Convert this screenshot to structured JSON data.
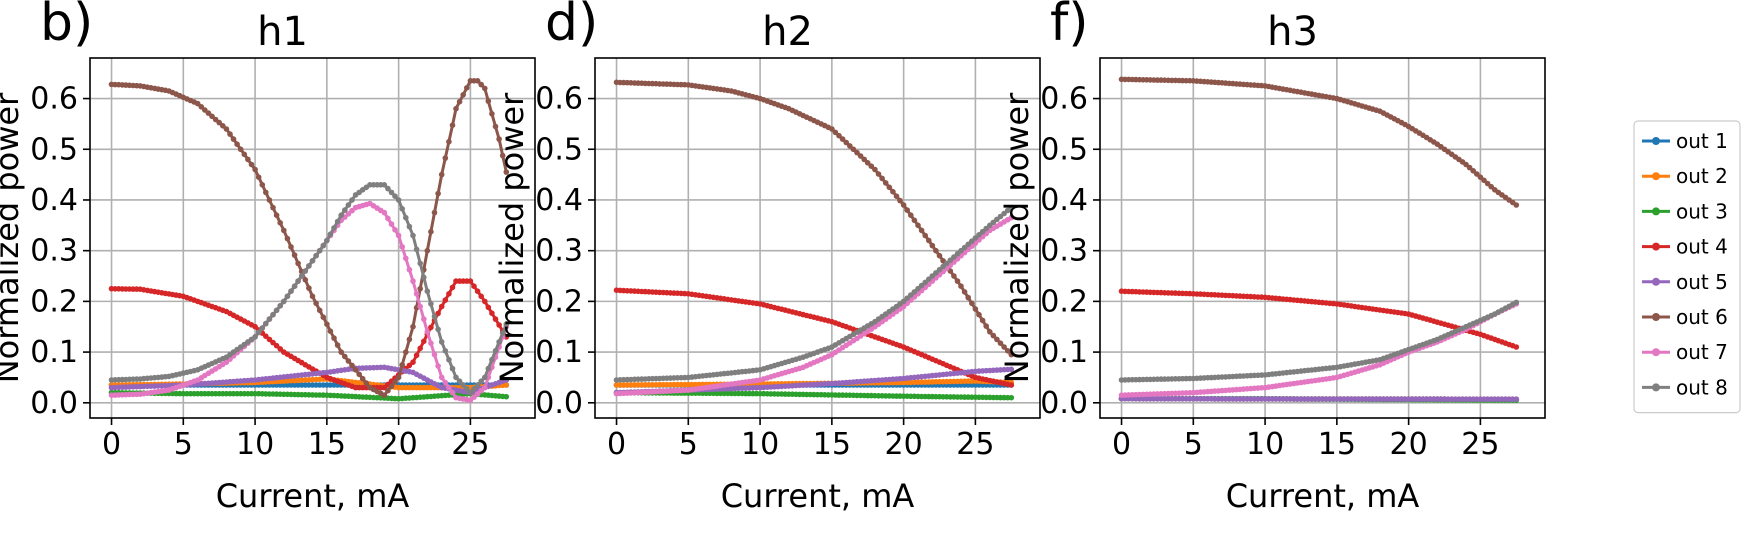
{
  "chart_data": [
    {
      "type": "line",
      "panel_label": "b)",
      "title": "h1",
      "xlabel": "Current, mA",
      "ylabel": "Normalized power",
      "xlim": [
        -1.5,
        29.5
      ],
      "ylim": [
        -0.03,
        0.68
      ],
      "xticks": [
        0,
        5,
        10,
        15,
        20,
        25
      ],
      "yticks": [
        0.0,
        0.1,
        0.2,
        0.3,
        0.4,
        0.5,
        0.6
      ],
      "grid": true,
      "legend": false,
      "series": [
        {
          "name": "out 1",
          "color": "#1f77b4",
          "x": [
            0,
            27.5
          ],
          "y": [
            0.035,
            0.035
          ]
        },
        {
          "name": "out 2",
          "color": "#ff7f0e",
          "x": [
            0,
            5,
            10,
            15,
            20,
            25,
            27.5
          ],
          "y": [
            0.035,
            0.037,
            0.04,
            0.047,
            0.03,
            0.03,
            0.035
          ]
        },
        {
          "name": "out 3",
          "color": "#2ca02c",
          "x": [
            0,
            5,
            10,
            15,
            20,
            25,
            27.5
          ],
          "y": [
            0.02,
            0.018,
            0.018,
            0.015,
            0.008,
            0.018,
            0.012
          ]
        },
        {
          "name": "out 4",
          "color": "#d62728",
          "x": [
            0,
            2,
            5,
            8,
            10,
            12,
            15,
            17,
            19,
            21,
            23,
            24,
            25,
            26,
            27.5
          ],
          "y": [
            0.225,
            0.224,
            0.21,
            0.18,
            0.15,
            0.1,
            0.05,
            0.03,
            0.03,
            0.08,
            0.19,
            0.24,
            0.24,
            0.2,
            0.13
          ]
        },
        {
          "name": "out 5",
          "color": "#9467bd",
          "x": [
            0,
            5,
            10,
            15,
            17,
            19,
            21,
            23,
            25,
            27.5
          ],
          "y": [
            0.03,
            0.035,
            0.045,
            0.06,
            0.068,
            0.07,
            0.06,
            0.03,
            0.02,
            0.045
          ]
        },
        {
          "name": "out 6",
          "color": "#8c564b",
          "x": [
            0,
            2,
            4,
            6,
            8,
            10,
            12,
            14,
            16,
            18,
            19,
            20,
            21,
            22,
            23,
            24,
            25,
            25.5,
            26,
            27,
            27.5
          ],
          "y": [
            0.628,
            0.625,
            0.615,
            0.59,
            0.54,
            0.46,
            0.34,
            0.21,
            0.1,
            0.03,
            0.015,
            0.05,
            0.15,
            0.3,
            0.45,
            0.58,
            0.635,
            0.635,
            0.62,
            0.52,
            0.455
          ]
        },
        {
          "name": "out 7",
          "color": "#e377c2",
          "x": [
            0,
            2,
            4,
            6,
            8,
            10,
            12,
            14,
            15,
            16,
            17,
            18,
            19,
            20,
            21,
            22,
            23,
            24,
            25,
            26,
            27.5
          ],
          "y": [
            0.015,
            0.017,
            0.025,
            0.045,
            0.08,
            0.13,
            0.2,
            0.28,
            0.32,
            0.36,
            0.385,
            0.393,
            0.375,
            0.33,
            0.24,
            0.14,
            0.05,
            0.01,
            0.005,
            0.03,
            0.15
          ]
        },
        {
          "name": "out 8",
          "color": "#7f7f7f",
          "x": [
            0,
            2,
            4,
            6,
            8,
            10,
            12,
            14,
            15,
            16,
            17,
            18,
            19,
            20,
            21,
            22,
            23,
            24,
            25,
            26,
            27.5
          ],
          "y": [
            0.045,
            0.047,
            0.052,
            0.065,
            0.09,
            0.13,
            0.2,
            0.28,
            0.32,
            0.37,
            0.41,
            0.43,
            0.43,
            0.4,
            0.33,
            0.22,
            0.12,
            0.05,
            0.02,
            0.05,
            0.155
          ]
        }
      ]
    },
    {
      "type": "line",
      "panel_label": "d)",
      "title": "h2",
      "xlabel": "Current, mA",
      "ylabel": "Normalized power",
      "xlim": [
        -1.5,
        29.5
      ],
      "ylim": [
        -0.03,
        0.68
      ],
      "xticks": [
        0,
        5,
        10,
        15,
        20,
        25
      ],
      "yticks": [
        0.0,
        0.1,
        0.2,
        0.3,
        0.4,
        0.5,
        0.6
      ],
      "grid": true,
      "legend": false,
      "series": [
        {
          "name": "out 1",
          "color": "#1f77b4",
          "x": [
            0,
            27.5
          ],
          "y": [
            0.035,
            0.035
          ]
        },
        {
          "name": "out 2",
          "color": "#ff7f0e",
          "x": [
            0,
            10,
            20,
            25,
            27.5
          ],
          "y": [
            0.035,
            0.037,
            0.04,
            0.043,
            0.04
          ]
        },
        {
          "name": "out 3",
          "color": "#2ca02c",
          "x": [
            0,
            10,
            20,
            27.5
          ],
          "y": [
            0.02,
            0.018,
            0.013,
            0.01
          ]
        },
        {
          "name": "out 4",
          "color": "#d62728",
          "x": [
            0,
            5,
            10,
            15,
            20,
            25,
            27.5
          ],
          "y": [
            0.222,
            0.215,
            0.195,
            0.16,
            0.11,
            0.05,
            0.035
          ]
        },
        {
          "name": "out 5",
          "color": "#9467bd",
          "x": [
            0,
            5,
            10,
            15,
            20,
            25,
            27.5
          ],
          "y": [
            0.02,
            0.025,
            0.03,
            0.038,
            0.048,
            0.062,
            0.066
          ]
        },
        {
          "name": "out 6",
          "color": "#8c564b",
          "x": [
            0,
            5,
            8,
            10,
            12,
            15,
            18,
            20,
            22,
            24,
            26,
            27.5
          ],
          "y": [
            0.632,
            0.627,
            0.615,
            0.6,
            0.58,
            0.54,
            0.46,
            0.39,
            0.31,
            0.23,
            0.14,
            0.095
          ]
        },
        {
          "name": "out 7",
          "color": "#e377c2",
          "x": [
            0,
            5,
            10,
            13,
            15,
            18,
            20,
            22,
            24,
            26,
            27.5
          ],
          "y": [
            0.018,
            0.025,
            0.045,
            0.07,
            0.095,
            0.15,
            0.19,
            0.24,
            0.29,
            0.34,
            0.365
          ]
        },
        {
          "name": "out 8",
          "color": "#7f7f7f",
          "x": [
            0,
            5,
            10,
            13,
            15,
            18,
            20,
            22,
            24,
            26,
            27.5
          ],
          "y": [
            0.045,
            0.05,
            0.065,
            0.09,
            0.11,
            0.16,
            0.2,
            0.25,
            0.3,
            0.35,
            0.385
          ]
        }
      ]
    },
    {
      "type": "line",
      "panel_label": "f)",
      "title": "h3",
      "xlabel": "Current, mA",
      "ylabel": "Normalized power",
      "xlim": [
        -1.5,
        29.5
      ],
      "ylim": [
        -0.03,
        0.68
      ],
      "xticks": [
        0,
        5,
        10,
        15,
        20,
        25
      ],
      "yticks": [
        0.0,
        0.1,
        0.2,
        0.3,
        0.4,
        0.5,
        0.6
      ],
      "grid": true,
      "legend": true,
      "legend_position": "right",
      "series": [
        {
          "name": "out 1",
          "color": "#1f77b4",
          "x": [
            0,
            27.5
          ],
          "y": [
            0.008,
            0.007
          ]
        },
        {
          "name": "out 2",
          "color": "#ff7f0e",
          "x": [
            0,
            27.5
          ],
          "y": [
            0.008,
            0.007
          ]
        },
        {
          "name": "out 3",
          "color": "#2ca02c",
          "x": [
            0,
            10,
            20,
            27.5
          ],
          "y": [
            0.008,
            0.008,
            0.006,
            0.005
          ]
        },
        {
          "name": "out 4",
          "color": "#d62728",
          "x": [
            0,
            5,
            10,
            15,
            20,
            25,
            27.5
          ],
          "y": [
            0.22,
            0.215,
            0.208,
            0.195,
            0.175,
            0.135,
            0.11
          ]
        },
        {
          "name": "out 5",
          "color": "#9467bd",
          "x": [
            0,
            27.5
          ],
          "y": [
            0.008,
            0.007
          ]
        },
        {
          "name": "out 6",
          "color": "#8c564b",
          "x": [
            0,
            5,
            10,
            15,
            18,
            20,
            22,
            24,
            26,
            27.5
          ],
          "y": [
            0.638,
            0.635,
            0.625,
            0.6,
            0.575,
            0.545,
            0.51,
            0.47,
            0.42,
            0.39
          ]
        },
        {
          "name": "out 7",
          "color": "#e377c2",
          "x": [
            0,
            5,
            10,
            15,
            18,
            20,
            22,
            24,
            26,
            27.5
          ],
          "y": [
            0.015,
            0.02,
            0.03,
            0.05,
            0.075,
            0.1,
            0.12,
            0.145,
            0.175,
            0.195
          ]
        },
        {
          "name": "out 8",
          "color": "#7f7f7f",
          "x": [
            0,
            5,
            10,
            15,
            18,
            20,
            22,
            24,
            26,
            27.5
          ],
          "y": [
            0.045,
            0.048,
            0.055,
            0.07,
            0.085,
            0.105,
            0.125,
            0.15,
            0.175,
            0.198
          ]
        }
      ]
    }
  ]
}
